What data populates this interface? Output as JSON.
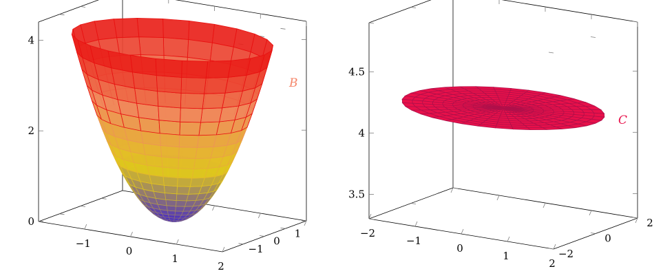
{
  "chart_data": [
    {
      "type": "surface3d",
      "surface": "paraboloid",
      "equation": "z = x^2 + y^2",
      "xlim": [
        -2,
        2
      ],
      "ylim": [
        -2,
        2
      ],
      "zlim": [
        0,
        4.4
      ],
      "radius_max": 2,
      "x_ticks": [
        -1,
        0,
        1,
        2
      ],
      "y_ticks": [
        -1,
        0,
        1
      ],
      "z_ticks": [
        0,
        2,
        4
      ],
      "label": "B",
      "colormap": [
        "#3b1fd0",
        "#e0c81a",
        "#f08c5e",
        "#e81010"
      ],
      "face_color": "#f5866a",
      "mesh_color": "#e81010"
    },
    {
      "type": "surface3d",
      "surface": "disk",
      "equation": "z = 4.2",
      "xlim": [
        -2,
        2
      ],
      "ylim": [
        -2,
        2
      ],
      "zlim": [
        3.3,
        4.9
      ],
      "radius_max": 2,
      "z_value": 4.2,
      "x_ticks": [
        -2,
        -1,
        0,
        1,
        2
      ],
      "y_ticks": [
        -2,
        0,
        2
      ],
      "z_ticks": [
        3.5,
        4,
        4.5
      ],
      "label": "C",
      "face_color": "#e8104a",
      "mesh_color": "#b0104a"
    }
  ]
}
